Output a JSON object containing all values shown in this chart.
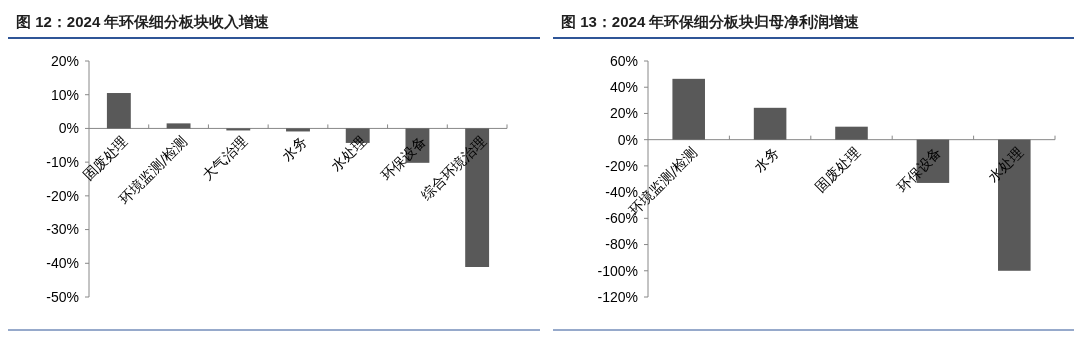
{
  "chart_data": [
    {
      "type": "bar",
      "title": "图 12：2024 年环保细分板块收入增速",
      "categories": [
        "固废处理",
        "环境监测/检测",
        "大气治理",
        "水务",
        "水处理",
        "环保设备",
        "综合环境治理"
      ],
      "values": [
        10.5,
        1.5,
        -0.6,
        -0.9,
        -4.3,
        -10.2,
        -41.1
      ],
      "color": "#595959",
      "ylim": [
        -50,
        20
      ],
      "yticks": [
        {
          "value": -50,
          "label": "-50%"
        },
        {
          "value": -40,
          "label": "-40%"
        },
        {
          "value": -30,
          "label": "-30%"
        },
        {
          "value": -20,
          "label": "-20%"
        },
        {
          "value": -10,
          "label": "-10%"
        },
        {
          "value": 0,
          "label": "0%"
        },
        {
          "value": 10,
          "label": "10%"
        },
        {
          "value": 20,
          "label": "20%"
        }
      ],
      "grid": false
    },
    {
      "type": "bar",
      "title": "图 13：2024 年环保细分板块归母净利润增速",
      "categories": [
        "环境监测/检测",
        "水务",
        "固废处理",
        "环保设备",
        "水处理"
      ],
      "values": [
        46.4,
        24.3,
        9.9,
        -33,
        -100
      ],
      "color": "#595959",
      "ylim": [
        -120,
        60
      ],
      "yticks": [
        {
          "value": -120,
          "label": "-120%"
        },
        {
          "value": -100,
          "label": "-100%"
        },
        {
          "value": -80,
          "label": "-80%"
        },
        {
          "value": -60,
          "label": "-60%"
        },
        {
          "value": -40,
          "label": "-40%"
        },
        {
          "value": -20,
          "label": "-20%"
        },
        {
          "value": 0,
          "label": "0%"
        },
        {
          "value": 20,
          "label": "20%"
        },
        {
          "value": 40,
          "label": "40%"
        },
        {
          "value": 60,
          "label": "60%"
        }
      ],
      "grid": false
    }
  ]
}
